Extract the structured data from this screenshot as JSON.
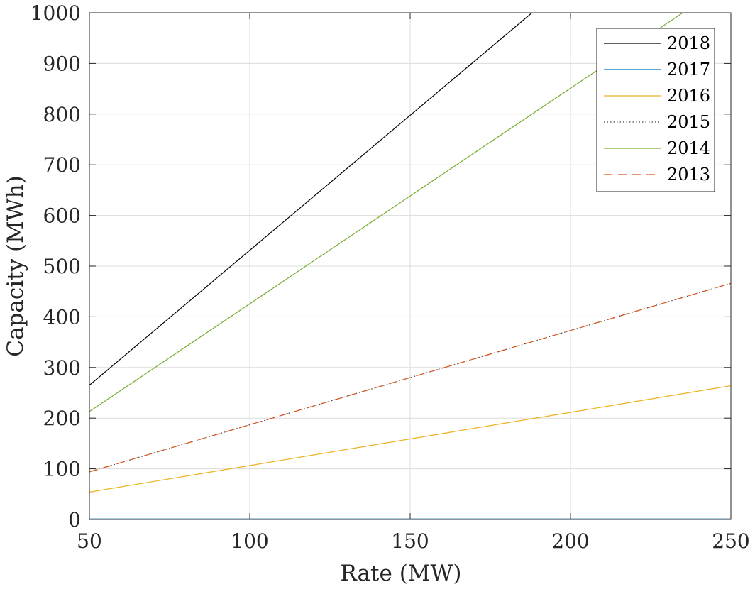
{
  "chart_data": {
    "type": "line",
    "xlabel": "Rate (MW)",
    "ylabel": "Capacity (MWh)",
    "xlim": [
      50,
      250
    ],
    "ylim": [
      0,
      1000
    ],
    "xticks": [
      50,
      100,
      150,
      200,
      250
    ],
    "yticks": [
      0,
      100,
      200,
      300,
      400,
      500,
      600,
      700,
      800,
      900,
      1000
    ],
    "grid": true,
    "legend_position": "top-right",
    "series": [
      {
        "name": "2018",
        "color": "#000000",
        "dash": "solid",
        "x": [
          50,
          188
        ],
        "y": [
          265,
          1000
        ]
      },
      {
        "name": "2017",
        "color": "#0072bd",
        "dash": "solid",
        "x": [
          50,
          250
        ],
        "y": [
          1,
          1
        ]
      },
      {
        "name": "2016",
        "color": "#edb120",
        "dash": "solid",
        "x": [
          50,
          250
        ],
        "y": [
          54,
          264
        ]
      },
      {
        "name": "2015",
        "color": "#444444",
        "dash": "dotted",
        "x": [
          50,
          250
        ],
        "y": [
          94,
          466
        ]
      },
      {
        "name": "2014",
        "color": "#77ac30",
        "dash": "solid",
        "x": [
          50,
          235
        ],
        "y": [
          213,
          1000
        ]
      },
      {
        "name": "2013",
        "color": "#d95319",
        "dash": "dashed",
        "x": [
          50,
          250
        ],
        "y": [
          94,
          466
        ]
      }
    ]
  }
}
